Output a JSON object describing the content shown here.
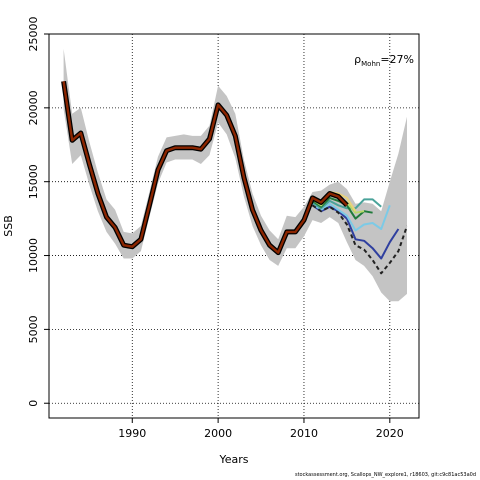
{
  "chart_data": {
    "type": "line",
    "xlabel": "Years",
    "ylabel": "SSB",
    "xlim": [
      1980.3,
      2023.4
    ],
    "ylim": [
      -1000,
      25000
    ],
    "x_ticks": [
      1990,
      2000,
      2010,
      2020
    ],
    "y_ticks": [
      0,
      5000,
      10000,
      15000,
      20000,
      25000
    ],
    "grid": "dotted",
    "annotation": {
      "rho_symbol": "ρ",
      "rho_subscript": "Mohn",
      "value": "=27%"
    },
    "footer": "stockassessment.org, Scallops_NW_explore1, r18603, git:c9c81ac53a0d",
    "band": {
      "x": [
        1982,
        1983,
        1984,
        1985,
        1986,
        1987,
        1988,
        1989,
        1990,
        1991,
        1992,
        1993,
        1994,
        1995,
        1996,
        1997,
        1998,
        1999,
        2000,
        2001,
        2002,
        2003,
        2004,
        2005,
        2006,
        2007,
        2008,
        2009,
        2010,
        2011,
        2012,
        2013,
        2014,
        2015,
        2016,
        2017,
        2018,
        2019,
        2020,
        2021,
        2022
      ],
      "lower": [
        19900,
        16200,
        16800,
        14800,
        13000,
        11600,
        10800,
        9800,
        9800,
        10300,
        12600,
        14900,
        16300,
        16500,
        16500,
        16500,
        16200,
        16800,
        19000,
        18200,
        16600,
        14000,
        12000,
        10700,
        9700,
        9300,
        10500,
        10500,
        11300,
        12400,
        12200,
        12600,
        12200,
        10900,
        9700,
        9300,
        8600,
        7500,
        6900,
        6900,
        7400
      ],
      "upper": [
        24000,
        19600,
        20000,
        17700,
        15600,
        13800,
        13100,
        11600,
        11500,
        12000,
        14300,
        16700,
        18000,
        18100,
        18200,
        18100,
        18100,
        18800,
        21500,
        20800,
        19600,
        16500,
        14200,
        12700,
        11700,
        11100,
        12700,
        12600,
        13300,
        14300,
        14400,
        14800,
        15000,
        14500,
        13500,
        13600,
        13500,
        13000,
        15000,
        16900,
        19400
      ]
    },
    "series": [
      {
        "color": "#2f3f9f",
        "x": [
          2011,
          2012,
          2013,
          2014,
          2015,
          2016,
          2017,
          2018,
          2019,
          2020,
          2021
        ],
        "values": [
          13400,
          13000,
          13300,
          13000,
          12500,
          11100,
          11000,
          10500,
          9800,
          10900,
          11800
        ]
      },
      {
        "color": "#7ccae6",
        "x": [
          2011,
          2012,
          2013,
          2014,
          2015,
          2016,
          2017,
          2018,
          2019,
          2020
        ],
        "values": [
          13500,
          13100,
          13500,
          13100,
          12700,
          11700,
          12100,
          12200,
          11800,
          13400
        ]
      },
      {
        "color": "#4aa39a",
        "x": [
          2011,
          2012,
          2013,
          2014,
          2015,
          2016,
          2017,
          2018,
          2019
        ],
        "values": [
          13600,
          13200,
          13700,
          13400,
          13200,
          13200,
          13800,
          13800,
          13300
        ]
      },
      {
        "color": "#1f7a3a",
        "x": [
          2011,
          2012,
          2013,
          2014,
          2015,
          2016,
          2017,
          2018
        ],
        "values": [
          13700,
          13300,
          13900,
          13700,
          13400,
          12500,
          13000,
          12900
        ]
      },
      {
        "color": "#b7d86a",
        "x": [
          2011,
          2012,
          2013,
          2014,
          2015,
          2016,
          2017
        ],
        "values": [
          13800,
          13400,
          14100,
          13900,
          13600,
          12900,
          13000
        ]
      },
      {
        "color": "#e8d27a",
        "x": [
          2011,
          2012,
          2013,
          2014,
          2015,
          2016
        ],
        "values": [
          13900,
          13600,
          14300,
          14200,
          13900,
          13000
        ]
      },
      {
        "color": "#222222",
        "dash": true,
        "x": [
          2011,
          2012,
          2013,
          2014,
          2015,
          2016,
          2017,
          2018,
          2019,
          2020,
          2021,
          2022
        ],
        "values": [
          13400,
          13000,
          13300,
          12900,
          12100,
          10700,
          10400,
          9700,
          8800,
          9500,
          10300,
          12000
        ]
      },
      {
        "color": "#8b2500",
        "main": true,
        "x": [
          1982,
          1983,
          1984,
          1985,
          1986,
          1987,
          1988,
          1989,
          1990,
          1991,
          1992,
          1993,
          1994,
          1995,
          1996,
          1997,
          1998,
          1999,
          2000,
          2001,
          2002,
          2003,
          2004,
          2005,
          2006,
          2007,
          2008,
          2009,
          2010,
          2011,
          2012,
          2013,
          2014,
          2015
        ],
        "values": [
          21800,
          17800,
          18300,
          16200,
          14200,
          12600,
          11900,
          10700,
          10600,
          11100,
          13400,
          15800,
          17100,
          17300,
          17300,
          17300,
          17200,
          17900,
          20200,
          19500,
          18100,
          15300,
          13100,
          11700,
          10700,
          10200,
          11600,
          11600,
          12400,
          13900,
          13600,
          14200,
          14000,
          13400
        ]
      }
    ]
  }
}
